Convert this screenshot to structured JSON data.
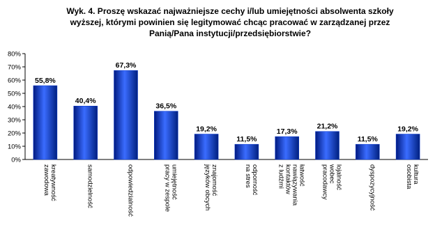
{
  "chart_data": {
    "type": "bar",
    "title": [
      "Wyk. 4. Proszę wskazać najważniejsze cechy i/lub umiejętności absolwenta szkoły",
      "wyższej, którymi powinien się legitymować chcąc pracować w zarządzanej przez",
      "Panią/Pana instytucji/przedsiębiorstwie?"
    ],
    "categories": [
      [
        "kreatywność",
        "zawodowa"
      ],
      [
        "samodzielność"
      ],
      [
        "odpowiedzialność"
      ],
      [
        "umiejętność",
        "pracy w zespole"
      ],
      [
        "znajomość",
        "języków obcych"
      ],
      [
        "odporność",
        "na stres"
      ],
      [
        "łatwość",
        "nawiązywania",
        "kontaktów",
        "z ludźmi"
      ],
      [
        "lojalność",
        "wobec",
        "pracodawcy"
      ],
      [
        "dyspozycyjność"
      ],
      [
        "kultura",
        "osobista"
      ]
    ],
    "values": [
      55.8,
      40.4,
      67.3,
      36.5,
      19.2,
      11.5,
      17.3,
      21.2,
      11.5,
      19.2
    ],
    "value_labels": [
      "55,8%",
      "40,4%",
      "67,3%",
      "36,5%",
      "19,2%",
      "11,5%",
      "17,3%",
      "21,2%",
      "11,5%",
      "19,2%"
    ],
    "color": "#0033cc",
    "ylim": [
      0,
      80
    ],
    "yticks": [
      {
        "value": 0,
        "label": "0%"
      },
      {
        "value": 10,
        "label": "10%"
      },
      {
        "value": 20,
        "label": "20%"
      },
      {
        "value": 30,
        "label": "30%"
      },
      {
        "value": 40,
        "label": "40%"
      },
      {
        "value": 50,
        "label": "50%"
      },
      {
        "value": 60,
        "label": "60%"
      },
      {
        "value": 70,
        "label": "70%"
      },
      {
        "value": 80,
        "label": "80%"
      }
    ],
    "grid": false
  }
}
